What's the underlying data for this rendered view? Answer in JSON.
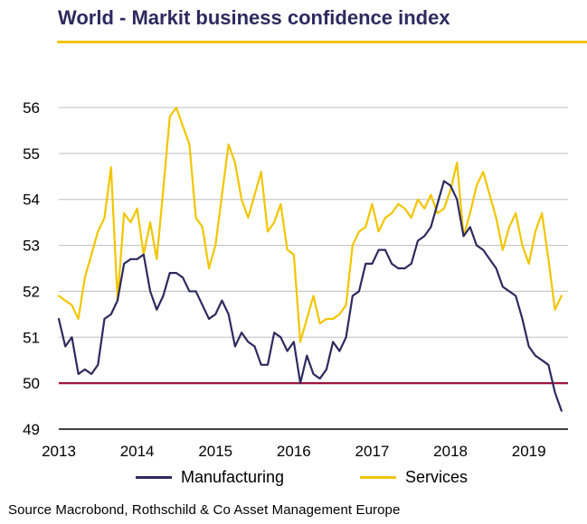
{
  "chart_data": {
    "type": "line",
    "title": "World - Markit business confidence index",
    "source": "Source Macrobond, Rothschild & Co Asset Management  Europe",
    "xlim": [
      2013.0,
      2019.5
    ],
    "ylim": [
      49,
      56
    ],
    "x_ticks": [
      2013,
      2014,
      2015,
      2016,
      2017,
      2018,
      2019
    ],
    "x_tick_labels": [
      "2013",
      "2014",
      "2015",
      "2016",
      "2017",
      "2018",
      "2019"
    ],
    "y_ticks": [
      49,
      50,
      51,
      52,
      53,
      54,
      55,
      56
    ],
    "y_tick_labels": [
      "49",
      "50",
      "51",
      "52",
      "53",
      "54",
      "55",
      "56"
    ],
    "grid": "horizontal",
    "legend_position": "bottom",
    "reference_line": {
      "y": 50,
      "color": "#a0143c"
    },
    "series": [
      {
        "name": "Manufacturing",
        "color": "#2e2a5e",
        "points": [
          [
            2013.0,
            51.4
          ],
          [
            2013.083,
            50.8
          ],
          [
            2013.167,
            51.0
          ],
          [
            2013.25,
            50.2
          ],
          [
            2013.333,
            50.3
          ],
          [
            2013.417,
            50.2
          ],
          [
            2013.5,
            50.4
          ],
          [
            2013.583,
            51.4
          ],
          [
            2013.667,
            51.5
          ],
          [
            2013.75,
            51.8
          ],
          [
            2013.833,
            52.6
          ],
          [
            2013.917,
            52.7
          ],
          [
            2014.0,
            52.7
          ],
          [
            2014.083,
            52.8
          ],
          [
            2014.167,
            52.0
          ],
          [
            2014.25,
            51.6
          ],
          [
            2014.333,
            51.9
          ],
          [
            2014.417,
            52.4
          ],
          [
            2014.5,
            52.4
          ],
          [
            2014.583,
            52.3
          ],
          [
            2014.667,
            52.0
          ],
          [
            2014.75,
            52.0
          ],
          [
            2014.833,
            51.7
          ],
          [
            2014.917,
            51.4
          ],
          [
            2015.0,
            51.5
          ],
          [
            2015.083,
            51.8
          ],
          [
            2015.167,
            51.5
          ],
          [
            2015.25,
            50.8
          ],
          [
            2015.333,
            51.1
          ],
          [
            2015.417,
            50.9
          ],
          [
            2015.5,
            50.8
          ],
          [
            2015.583,
            50.4
          ],
          [
            2015.667,
            50.4
          ],
          [
            2015.75,
            51.1
          ],
          [
            2015.833,
            51.0
          ],
          [
            2015.917,
            50.7
          ],
          [
            2016.0,
            50.9
          ],
          [
            2016.083,
            50.0
          ],
          [
            2016.167,
            50.6
          ],
          [
            2016.25,
            50.2
          ],
          [
            2016.333,
            50.1
          ],
          [
            2016.417,
            50.3
          ],
          [
            2016.5,
            50.9
          ],
          [
            2016.583,
            50.7
          ],
          [
            2016.667,
            51.0
          ],
          [
            2016.75,
            51.9
          ],
          [
            2016.833,
            52.0
          ],
          [
            2016.917,
            52.6
          ],
          [
            2017.0,
            52.6
          ],
          [
            2017.083,
            52.9
          ],
          [
            2017.167,
            52.9
          ],
          [
            2017.25,
            52.6
          ],
          [
            2017.333,
            52.5
          ],
          [
            2017.417,
            52.5
          ],
          [
            2017.5,
            52.6
          ],
          [
            2017.583,
            53.1
          ],
          [
            2017.667,
            53.2
          ],
          [
            2017.75,
            53.4
          ],
          [
            2017.833,
            53.9
          ],
          [
            2017.917,
            54.4
          ],
          [
            2018.0,
            54.3
          ],
          [
            2018.083,
            54.0
          ],
          [
            2018.167,
            53.2
          ],
          [
            2018.25,
            53.4
          ],
          [
            2018.333,
            53.0
          ],
          [
            2018.417,
            52.9
          ],
          [
            2018.5,
            52.7
          ],
          [
            2018.583,
            52.5
          ],
          [
            2018.667,
            52.1
          ],
          [
            2018.75,
            52.0
          ],
          [
            2018.833,
            51.9
          ],
          [
            2018.917,
            51.4
          ],
          [
            2019.0,
            50.8
          ],
          [
            2019.083,
            50.6
          ],
          [
            2019.167,
            50.5
          ],
          [
            2019.25,
            50.4
          ],
          [
            2019.333,
            49.8
          ],
          [
            2019.417,
            49.4
          ]
        ]
      },
      {
        "name": "Services",
        "color": "#f2c500",
        "points": [
          [
            2013.0,
            51.9
          ],
          [
            2013.083,
            51.8
          ],
          [
            2013.167,
            51.7
          ],
          [
            2013.25,
            51.4
          ],
          [
            2013.333,
            52.3
          ],
          [
            2013.417,
            52.8
          ],
          [
            2013.5,
            53.3
          ],
          [
            2013.583,
            53.6
          ],
          [
            2013.667,
            54.7
          ],
          [
            2013.75,
            51.8
          ],
          [
            2013.833,
            53.7
          ],
          [
            2013.917,
            53.5
          ],
          [
            2014.0,
            53.8
          ],
          [
            2014.083,
            52.8
          ],
          [
            2014.167,
            53.5
          ],
          [
            2014.25,
            52.7
          ],
          [
            2014.333,
            54.2
          ],
          [
            2014.417,
            55.8
          ],
          [
            2014.5,
            56.0
          ],
          [
            2014.583,
            55.6
          ],
          [
            2014.667,
            55.2
          ],
          [
            2014.75,
            53.6
          ],
          [
            2014.833,
            53.4
          ],
          [
            2014.917,
            52.5
          ],
          [
            2015.0,
            53.0
          ],
          [
            2015.083,
            54.1
          ],
          [
            2015.167,
            55.2
          ],
          [
            2015.25,
            54.8
          ],
          [
            2015.333,
            54.0
          ],
          [
            2015.417,
            53.6
          ],
          [
            2015.5,
            54.1
          ],
          [
            2015.583,
            54.6
          ],
          [
            2015.667,
            53.3
          ],
          [
            2015.75,
            53.5
          ],
          [
            2015.833,
            53.9
          ],
          [
            2015.917,
            52.9
          ],
          [
            2016.0,
            52.8
          ],
          [
            2016.083,
            50.9
          ],
          [
            2016.167,
            51.4
          ],
          [
            2016.25,
            51.9
          ],
          [
            2016.333,
            51.3
          ],
          [
            2016.417,
            51.4
          ],
          [
            2016.5,
            51.4
          ],
          [
            2016.583,
            51.5
          ],
          [
            2016.667,
            51.7
          ],
          [
            2016.75,
            53.0
          ],
          [
            2016.833,
            53.3
          ],
          [
            2016.917,
            53.4
          ],
          [
            2017.0,
            53.9
          ],
          [
            2017.083,
            53.3
          ],
          [
            2017.167,
            53.6
          ],
          [
            2017.25,
            53.7
          ],
          [
            2017.333,
            53.9
          ],
          [
            2017.417,
            53.8
          ],
          [
            2017.5,
            53.6
          ],
          [
            2017.583,
            54.0
          ],
          [
            2017.667,
            53.8
          ],
          [
            2017.75,
            54.1
          ],
          [
            2017.833,
            53.7
          ],
          [
            2017.917,
            53.8
          ],
          [
            2018.0,
            54.2
          ],
          [
            2018.083,
            54.8
          ],
          [
            2018.167,
            53.2
          ],
          [
            2018.25,
            53.7
          ],
          [
            2018.333,
            54.3
          ],
          [
            2018.417,
            54.6
          ],
          [
            2018.5,
            54.1
          ],
          [
            2018.583,
            53.6
          ],
          [
            2018.667,
            52.9
          ],
          [
            2018.75,
            53.4
          ],
          [
            2018.833,
            53.7
          ],
          [
            2018.917,
            53.0
          ],
          [
            2019.0,
            52.6
          ],
          [
            2019.083,
            53.3
          ],
          [
            2019.167,
            53.7
          ],
          [
            2019.25,
            52.7
          ],
          [
            2019.333,
            51.6
          ],
          [
            2019.417,
            51.9
          ]
        ]
      }
    ]
  }
}
